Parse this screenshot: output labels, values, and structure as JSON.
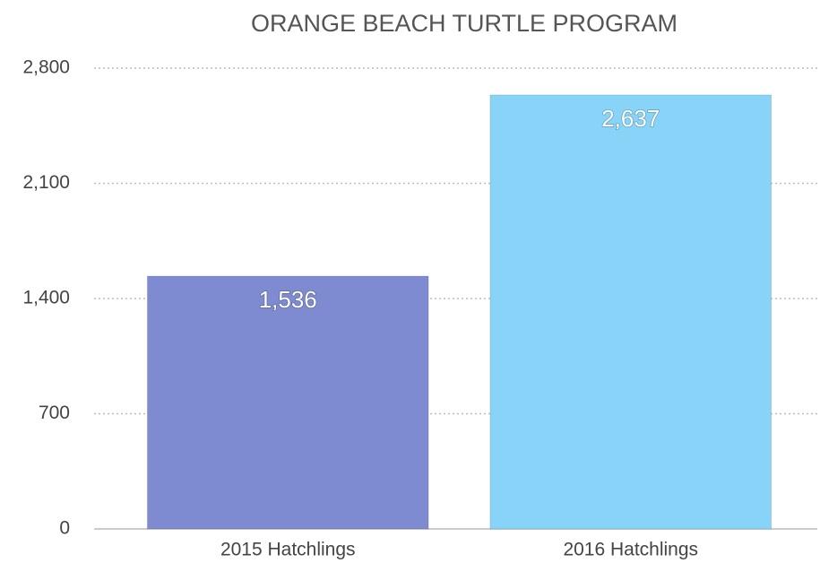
{
  "chart_data": {
    "type": "bar",
    "title": "ORANGE BEACH TURTLE PROGRAM",
    "categories": [
      "2015 Hatchlings",
      "2016 Hatchlings"
    ],
    "values": [
      1536,
      2637
    ],
    "value_labels": [
      "1,536",
      "2,637"
    ],
    "colors": [
      "#7f8bd0",
      "#87d4f8"
    ],
    "ylim": [
      0,
      2800
    ],
    "yticks": [
      0,
      700,
      {
        "value": 1400,
        "label": "1,400"
      },
      {
        "value": 2100,
        "label": "2,100"
      },
      {
        "value": 2800,
        "label": "2,800"
      }
    ],
    "grid": true
  }
}
